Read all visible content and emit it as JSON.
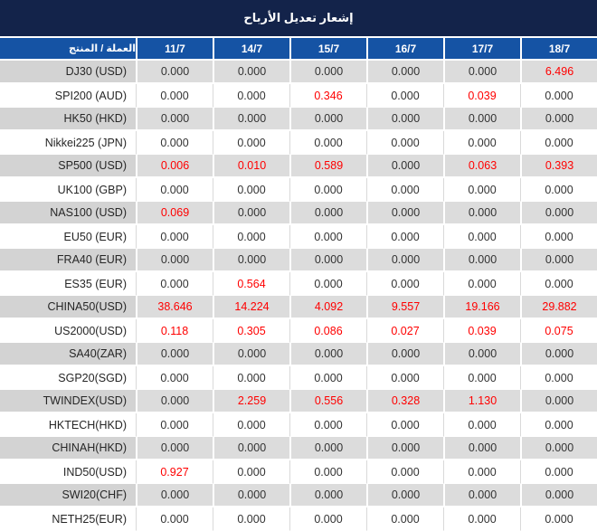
{
  "title": "إشعار تعديل الأرباح",
  "table": {
    "label_header": "العملة / المنتج",
    "date_headers": [
      "11/7",
      "14/7",
      "15/7",
      "16/7",
      "17/7",
      "18/7"
    ],
    "rows": [
      {
        "label": "DJ30 (USD)",
        "values": [
          "0.000",
          "0.000",
          "0.000",
          "0.000",
          "0.000",
          "6.496"
        ],
        "red": [
          0,
          0,
          0,
          0,
          0,
          1
        ]
      },
      {
        "label": "SPI200 (AUD)",
        "values": [
          "0.000",
          "0.000",
          "0.346",
          "0.000",
          "0.039",
          "0.000"
        ],
        "red": [
          0,
          0,
          1,
          0,
          1,
          0
        ]
      },
      {
        "label": "HK50 (HKD)",
        "values": [
          "0.000",
          "0.000",
          "0.000",
          "0.000",
          "0.000",
          "0.000"
        ],
        "red": [
          0,
          0,
          0,
          0,
          0,
          0
        ]
      },
      {
        "label": "Nikkei225 (JPN)",
        "values": [
          "0.000",
          "0.000",
          "0.000",
          "0.000",
          "0.000",
          "0.000"
        ],
        "red": [
          0,
          0,
          0,
          0,
          0,
          0
        ]
      },
      {
        "label": "SP500 (USD)",
        "values": [
          "0.006",
          "0.010",
          "0.589",
          "0.000",
          "0.063",
          "0.393"
        ],
        "red": [
          1,
          1,
          1,
          0,
          1,
          1
        ]
      },
      {
        "label": "UK100 (GBP)",
        "values": [
          "0.000",
          "0.000",
          "0.000",
          "0.000",
          "0.000",
          "0.000"
        ],
        "red": [
          0,
          0,
          0,
          0,
          0,
          0
        ]
      },
      {
        "label": "NAS100 (USD)",
        "values": [
          "0.069",
          "0.000",
          "0.000",
          "0.000",
          "0.000",
          "0.000"
        ],
        "red": [
          1,
          0,
          0,
          0,
          0,
          0
        ]
      },
      {
        "label": "EU50 (EUR)",
        "values": [
          "0.000",
          "0.000",
          "0.000",
          "0.000",
          "0.000",
          "0.000"
        ],
        "red": [
          0,
          0,
          0,
          0,
          0,
          0
        ]
      },
      {
        "label": "FRA40 (EUR)",
        "values": [
          "0.000",
          "0.000",
          "0.000",
          "0.000",
          "0.000",
          "0.000"
        ],
        "red": [
          0,
          0,
          0,
          0,
          0,
          0
        ]
      },
      {
        "label": "ES35 (EUR)",
        "values": [
          "0.000",
          "0.564",
          "0.000",
          "0.000",
          "0.000",
          "0.000"
        ],
        "red": [
          0,
          1,
          0,
          0,
          0,
          0
        ]
      },
      {
        "label": "CHINA50(USD)",
        "values": [
          "38.646",
          "14.224",
          "4.092",
          "9.557",
          "19.166",
          "29.882"
        ],
        "red": [
          1,
          1,
          1,
          1,
          1,
          1
        ]
      },
      {
        "label": "US2000(USD)",
        "values": [
          "0.118",
          "0.305",
          "0.086",
          "0.027",
          "0.039",
          "0.075"
        ],
        "red": [
          1,
          1,
          1,
          1,
          1,
          1
        ]
      },
      {
        "label": "SA40(ZAR)",
        "values": [
          "0.000",
          "0.000",
          "0.000",
          "0.000",
          "0.000",
          "0.000"
        ],
        "red": [
          0,
          0,
          0,
          0,
          0,
          0
        ]
      },
      {
        "label": "SGP20(SGD)",
        "values": [
          "0.000",
          "0.000",
          "0.000",
          "0.000",
          "0.000",
          "0.000"
        ],
        "red": [
          0,
          0,
          0,
          0,
          0,
          0
        ]
      },
      {
        "label": "TWINDEX(USD)",
        "values": [
          "0.000",
          "2.259",
          "0.556",
          "0.328",
          "1.130",
          "0.000"
        ],
        "red": [
          0,
          1,
          1,
          1,
          1,
          0
        ]
      },
      {
        "label": "HKTECH(HKD)",
        "values": [
          "0.000",
          "0.000",
          "0.000",
          "0.000",
          "0.000",
          "0.000"
        ],
        "red": [
          0,
          0,
          0,
          0,
          0,
          0
        ]
      },
      {
        "label": "CHINAH(HKD)",
        "values": [
          "0.000",
          "0.000",
          "0.000",
          "0.000",
          "0.000",
          "0.000"
        ],
        "red": [
          0,
          0,
          0,
          0,
          0,
          0
        ]
      },
      {
        "label": "IND50(USD)",
        "values": [
          "0.927",
          "0.000",
          "0.000",
          "0.000",
          "0.000",
          "0.000"
        ],
        "red": [
          1,
          0,
          0,
          0,
          0,
          0
        ]
      },
      {
        "label": "SWI20(CHF)",
        "values": [
          "0.000",
          "0.000",
          "0.000",
          "0.000",
          "0.000",
          "0.000"
        ],
        "red": [
          0,
          0,
          0,
          0,
          0,
          0
        ]
      },
      {
        "label": "NETH25(EUR)",
        "values": [
          "0.000",
          "0.000",
          "0.000",
          "0.000",
          "0.000",
          "0.000"
        ],
        "red": [
          0,
          0,
          0,
          0,
          0,
          0
        ]
      }
    ]
  },
  "colors": {
    "title_bg": "#13234a",
    "header_bg": "#1553a4",
    "gray_row_bg": "#dcdcdc",
    "gray_label_bg": "#d3d3d3",
    "white_row_bg": "#ffffff",
    "negative_value": "#ff0000",
    "normal_value": "#333333",
    "header_text": "#ffffff"
  }
}
